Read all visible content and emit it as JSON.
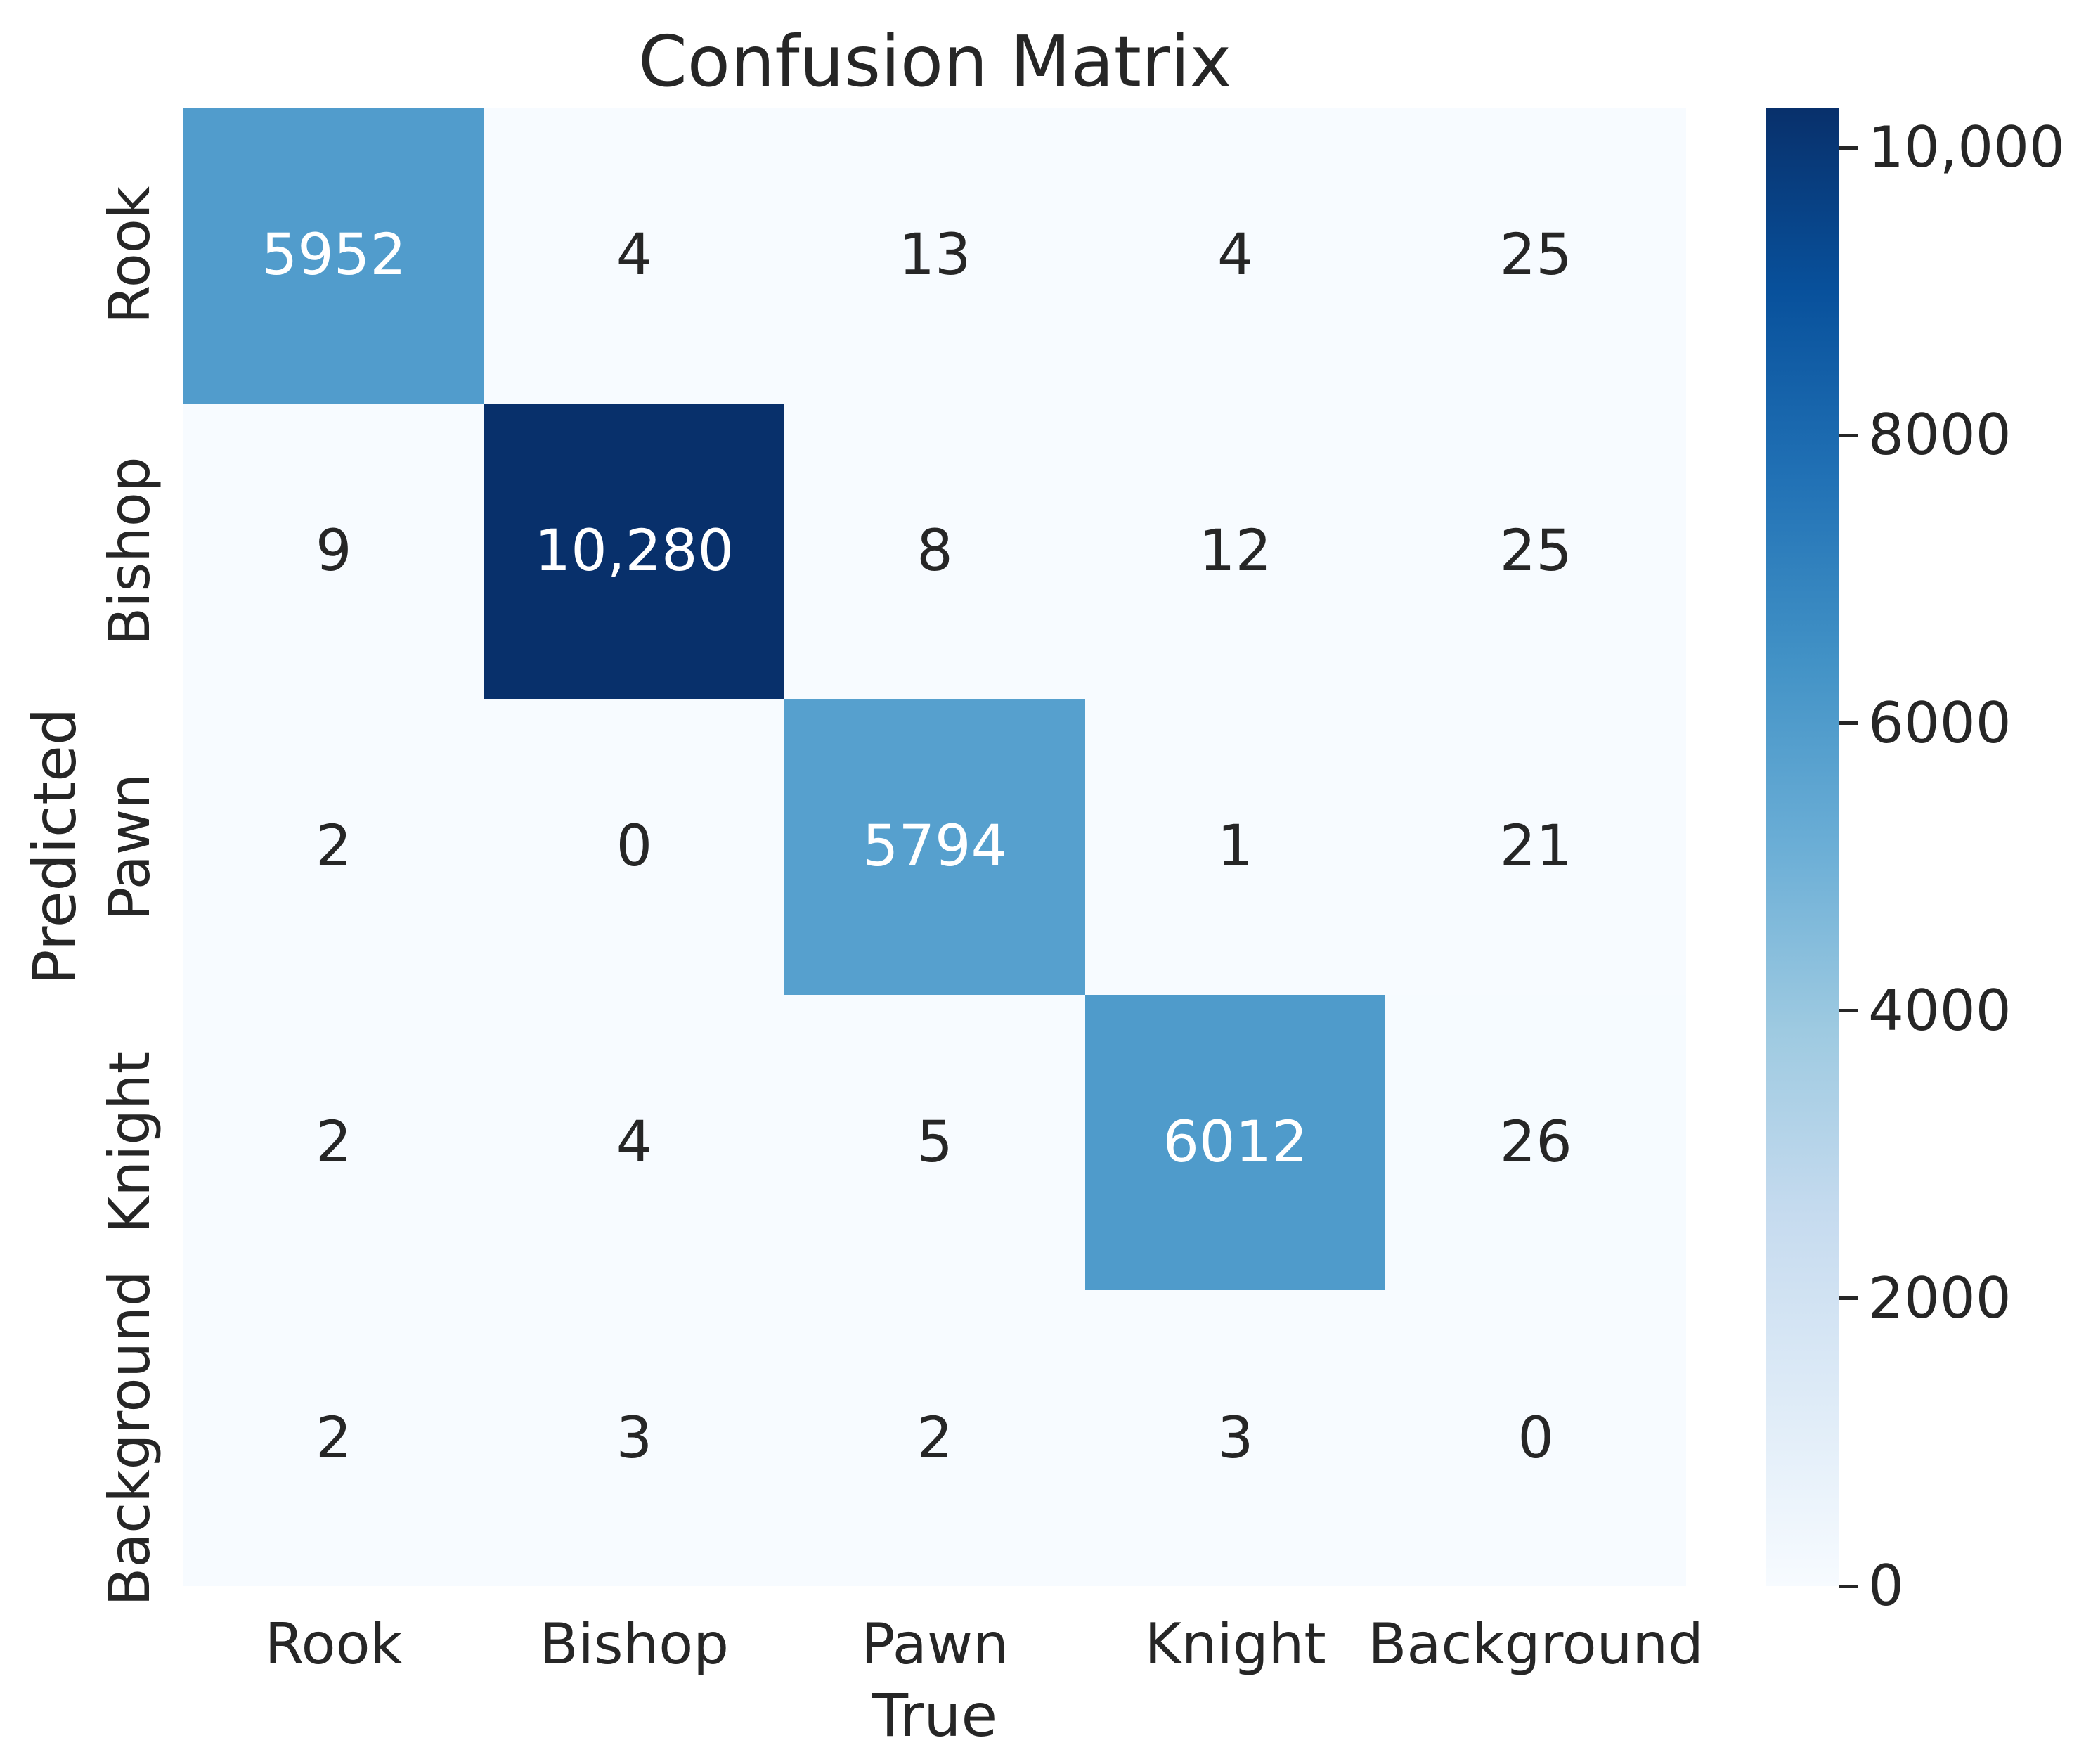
{
  "chart_data": {
    "type": "heatmap",
    "title": "Confusion Matrix",
    "xlabel": "True",
    "ylabel": "Predicted",
    "categories": [
      "Rook",
      "Bishop",
      "Pawn",
      "Knight",
      "Background"
    ],
    "matrix": [
      [
        5952,
        4,
        13,
        4,
        25
      ],
      [
        9,
        10280,
        8,
        12,
        25
      ],
      [
        2,
        0,
        5794,
        1,
        21
      ],
      [
        2,
        4,
        5,
        6012,
        26
      ],
      [
        2,
        3,
        2,
        3,
        0
      ]
    ],
    "cell_labels": [
      [
        "5952",
        "4",
        "13",
        "4",
        "25"
      ],
      [
        "9",
        "10,280",
        "8",
        "12",
        "25"
      ],
      [
        "2",
        "0",
        "5794",
        "1",
        "21"
      ],
      [
        "2",
        "4",
        "5",
        "6012",
        "26"
      ],
      [
        "2",
        "3",
        "2",
        "3",
        "0"
      ]
    ],
    "vmin": 0,
    "vmax": 10280,
    "colormap": "Blues",
    "colormap_stops": [
      "#f7fbff",
      "#deebf7",
      "#c6dbef",
      "#9ecae1",
      "#6baed6",
      "#4292c6",
      "#2171b5",
      "#08519c",
      "#08306b"
    ],
    "colorbar_ticks": [
      {
        "value": 0,
        "label": "0"
      },
      {
        "value": 2000,
        "label": "2000"
      },
      {
        "value": 4000,
        "label": "4000"
      },
      {
        "value": 6000,
        "label": "6000"
      },
      {
        "value": 8000,
        "label": "8000"
      },
      {
        "value": 10000,
        "label": "10,000"
      }
    ],
    "legend_position": "right",
    "grid": false,
    "text_color": "#262626",
    "annot_light_color": "#ffffff",
    "annot_dark_color": "#262626"
  }
}
